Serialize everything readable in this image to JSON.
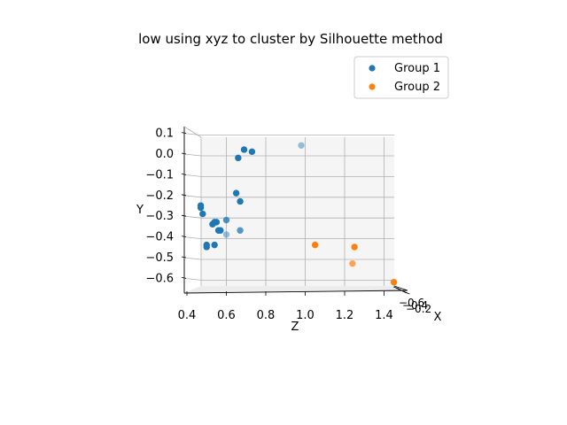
{
  "chart_data": {
    "type": "scatter",
    "projection": "3d",
    "title": "low using xyz to cluster by Silhouette method",
    "xlabel": "X",
    "ylabel": "Y",
    "zlabel": "Z",
    "x_ticks": [
      "−0.6",
      "−0.4",
      "−0.2"
    ],
    "y_ticks": [
      "0.1",
      "0.0",
      "−0.1",
      "−0.2",
      "−0.3",
      "−0.4",
      "−0.5",
      "−0.6"
    ],
    "z_ticks": [
      "0.4",
      "0.6",
      "0.8",
      "1.0",
      "1.2",
      "1.4"
    ],
    "ylim": [
      -0.66,
      0.16
    ],
    "zlim": [
      0.4,
      1.45
    ],
    "grid": true,
    "legend_position": "upper-right",
    "series": [
      {
        "name": "Group 1",
        "color": "#1f77b4",
        "points": [
          {
            "z": 0.69,
            "y": 0.03,
            "depth": 1
          },
          {
            "z": 0.73,
            "y": 0.02,
            "depth": 1
          },
          {
            "z": 0.66,
            "y": -0.01,
            "depth": 1
          },
          {
            "z": 0.98,
            "y": 0.05,
            "depth": 0.45
          },
          {
            "z": 0.65,
            "y": -0.18,
            "depth": 1
          },
          {
            "z": 0.67,
            "y": -0.22,
            "depth": 1
          },
          {
            "z": 0.47,
            "y": -0.24,
            "depth": 1
          },
          {
            "z": 0.47,
            "y": -0.25,
            "depth": 1
          },
          {
            "z": 0.48,
            "y": -0.28,
            "depth": 1
          },
          {
            "z": 0.6,
            "y": -0.31,
            "depth": 0.8
          },
          {
            "z": 0.54,
            "y": -0.32,
            "depth": 1
          },
          {
            "z": 0.55,
            "y": -0.32,
            "depth": 1
          },
          {
            "z": 0.53,
            "y": -0.33,
            "depth": 1
          },
          {
            "z": 0.57,
            "y": -0.36,
            "depth": 1
          },
          {
            "z": 0.56,
            "y": -0.36,
            "depth": 1
          },
          {
            "z": 0.67,
            "y": -0.36,
            "depth": 0.75
          },
          {
            "z": 0.6,
            "y": -0.38,
            "depth": 0.45
          },
          {
            "z": 0.54,
            "y": -0.43,
            "depth": 1
          },
          {
            "z": 0.5,
            "y": -0.43,
            "depth": 1
          },
          {
            "z": 0.5,
            "y": -0.44,
            "depth": 1
          }
        ]
      },
      {
        "name": "Group 2",
        "color": "#ff7f0e",
        "points": [
          {
            "z": 1.05,
            "y": -0.43,
            "depth": 1
          },
          {
            "z": 1.25,
            "y": -0.44,
            "depth": 1
          },
          {
            "z": 1.24,
            "y": -0.52,
            "depth": 0.7
          },
          {
            "z": 1.45,
            "y": -0.61,
            "depth": 1
          }
        ]
      }
    ]
  }
}
